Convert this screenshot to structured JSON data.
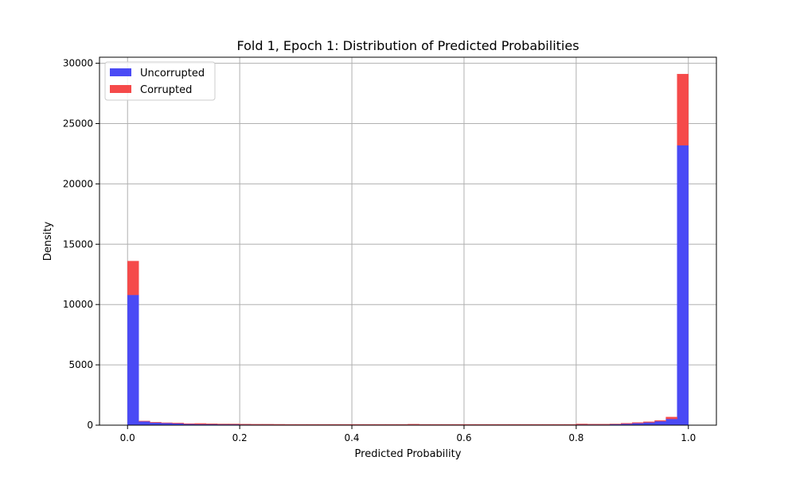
{
  "chart_data": {
    "type": "bar",
    "title": "Fold 1, Epoch 1: Distribution of Predicted Probabilities",
    "xlabel": "Predicted Probability",
    "ylabel": "Density",
    "xlim": [
      -0.05,
      1.05
    ],
    "ylim": [
      0,
      30500
    ],
    "xticks": [
      0.0,
      0.2,
      0.4,
      0.6,
      0.8,
      1.0
    ],
    "xtick_labels": [
      "0.0",
      "0.2",
      "0.4",
      "0.6",
      "0.8",
      "1.0"
    ],
    "yticks": [
      0,
      5000,
      10000,
      15000,
      20000,
      25000,
      30000
    ],
    "ytick_labels": [
      "0",
      "5000",
      "10000",
      "15000",
      "20000",
      "25000",
      "30000"
    ],
    "grid": true,
    "stacked": true,
    "legend_position": "top-left",
    "bins": {
      "start": 0.0,
      "width": 0.02,
      "count": 50
    },
    "series": [
      {
        "name": "Uncorrupted",
        "color": "#4a4af5",
        "values": [
          10800,
          320,
          220,
          180,
          150,
          100,
          90,
          80,
          70,
          70,
          60,
          55,
          55,
          50,
          50,
          50,
          50,
          50,
          50,
          50,
          50,
          50,
          50,
          50,
          50,
          50,
          50,
          50,
          50,
          50,
          50,
          50,
          50,
          50,
          50,
          50,
          50,
          50,
          50,
          50,
          60,
          60,
          60,
          80,
          120,
          170,
          230,
          330,
          520,
          23200
        ]
      },
      {
        "name": "Corrupted",
        "color": "#f54a4a",
        "values": [
          2800,
          20,
          20,
          20,
          30,
          30,
          50,
          40,
          30,
          30,
          20,
          20,
          20,
          20,
          15,
          15,
          15,
          15,
          15,
          15,
          15,
          15,
          15,
          15,
          15,
          30,
          15,
          15,
          15,
          15,
          15,
          15,
          15,
          15,
          15,
          15,
          15,
          15,
          15,
          15,
          40,
          20,
          20,
          20,
          40,
          50,
          50,
          60,
          150,
          5900
        ]
      }
    ]
  }
}
